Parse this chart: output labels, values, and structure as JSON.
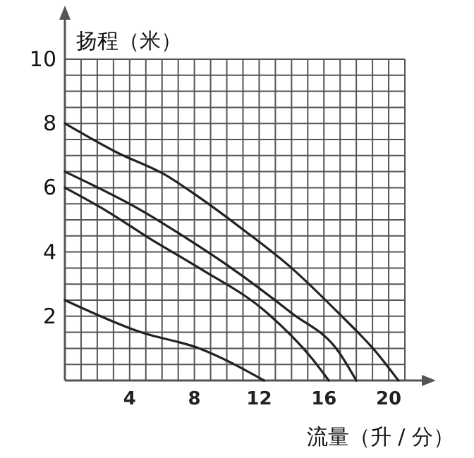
{
  "chart_data": {
    "type": "line",
    "xlabel": "流量（升 / 分）",
    "ylabel": "扬程（米）",
    "xlim": [
      0,
      21
    ],
    "ylim": [
      0,
      10
    ],
    "xticks": [
      {
        "value": 1,
        "label": null
      },
      {
        "value": 2,
        "label": null
      },
      {
        "value": 3,
        "label": null
      },
      4,
      {
        "value": 5,
        "label": null
      },
      {
        "value": 6,
        "label": null
      },
      {
        "value": 7,
        "label": null
      },
      8,
      {
        "value": 9,
        "label": null
      },
      {
        "value": 10,
        "label": null
      },
      {
        "value": 11,
        "label": null
      },
      12,
      {
        "value": 13,
        "label": null
      },
      {
        "value": 14,
        "label": null
      },
      {
        "value": 15,
        "label": null
      },
      16,
      {
        "value": 17,
        "label": null
      },
      {
        "value": 18,
        "label": null
      },
      {
        "value": 19,
        "label": null
      },
      20,
      {
        "value": 21,
        "label": null
      }
    ],
    "yticks": [
      {
        "value": 0.5,
        "label": null
      },
      {
        "value": 1,
        "label": null
      },
      {
        "value": 1.5,
        "label": null
      },
      2,
      {
        "value": 2.5,
        "label": null
      },
      {
        "value": 3,
        "label": null
      },
      {
        "value": 3.5,
        "label": null
      },
      4,
      {
        "value": 4.5,
        "label": null
      },
      {
        "value": 5,
        "label": null
      },
      {
        "value": 5.5,
        "label": null
      },
      6,
      {
        "value": 6.5,
        "label": null
      },
      {
        "value": 7,
        "label": null
      },
      {
        "value": 7.5,
        "label": null
      },
      8,
      {
        "value": 8.5,
        "label": null
      },
      {
        "value": 9,
        "label": null
      },
      {
        "value": 9.5,
        "label": null
      },
      10
    ],
    "grid": true,
    "marker": "none",
    "line_style": "solid",
    "series": [
      {
        "color": "#222222",
        "x": [
          0,
          3.2,
          6.2,
          8.3,
          11,
          14,
          16.9,
          19.2,
          20.6
        ],
        "values": [
          8,
          7.1,
          6.4,
          5.7,
          4.7,
          3.5,
          2.1,
          0.9,
          0
        ]
      },
      {
        "color": "#222222",
        "x": [
          0,
          4.7,
          7.6,
          10,
          14,
          16.9,
          18
        ],
        "values": [
          6.5,
          5.3,
          4.4,
          3.6,
          2.1,
          0.9,
          0
        ]
      },
      {
        "color": "#222222",
        "x": [
          0,
          2.5,
          5.3,
          8.3,
          12.5,
          15.4,
          16.3
        ],
        "values": [
          6,
          5.3,
          4.4,
          3.5,
          2.1,
          0.6,
          0
        ]
      },
      {
        "color": "#222222",
        "x": [
          0,
          4.7,
          8.3,
          12.3
        ],
        "values": [
          2.5,
          1.5,
          1,
          0
        ]
      }
    ]
  }
}
